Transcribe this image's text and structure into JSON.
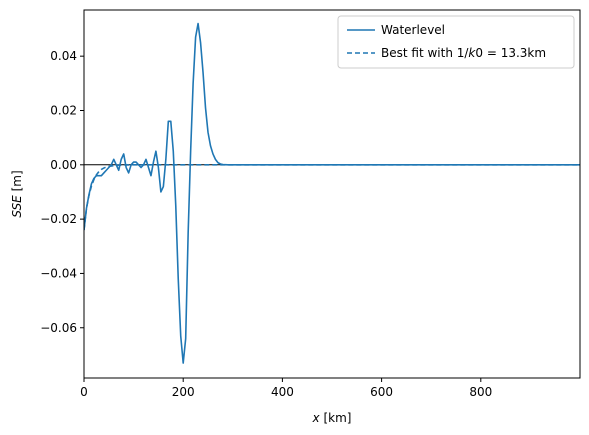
{
  "chart_data": {
    "type": "line",
    "xlabel": "x [km]",
    "ylabel": "SSE [m]",
    "xlim": [
      0,
      1000
    ],
    "ylim": [
      -0.0785,
      0.057
    ],
    "xticks": [
      0,
      200,
      400,
      600,
      800
    ],
    "xtick_labels": [
      "0",
      "200",
      "400",
      "600",
      "800"
    ],
    "yticks": [
      0.04,
      0.02,
      0.0,
      -0.02,
      -0.04,
      -0.06
    ],
    "ytick_labels": [
      "0.04",
      "0.02",
      "0.00",
      "−0.02",
      "−0.04",
      "−0.06"
    ],
    "grid": false,
    "legend_position": "top-right",
    "zero_line": {
      "y": 0,
      "color": "#000000"
    },
    "series": [
      {
        "name": "Waterlevel",
        "style": "solid",
        "color": "#1f77b4",
        "x": [
          0,
          5,
          10,
          15,
          20,
          25,
          30,
          35,
          40,
          45,
          50,
          55,
          60,
          65,
          70,
          75,
          80,
          85,
          90,
          95,
          100,
          105,
          110,
          115,
          120,
          125,
          130,
          135,
          140,
          145,
          150,
          155,
          160,
          165,
          170,
          175,
          180,
          185,
          190,
          195,
          200,
          205,
          210,
          215,
          220,
          225,
          230,
          235,
          240,
          245,
          250,
          255,
          260,
          265,
          270,
          275,
          280,
          290,
          300,
          350,
          400,
          500,
          600,
          700,
          800,
          900,
          1000
        ],
        "y": [
          -0.024,
          -0.016,
          -0.011,
          -0.007,
          -0.005,
          -0.004,
          -0.004,
          -0.004,
          -0.003,
          -0.002,
          -0.001,
          0.0,
          0.002,
          0.0,
          -0.002,
          0.002,
          0.004,
          -0.001,
          -0.003,
          0.0,
          0.001,
          0.001,
          0.0,
          -0.001,
          0.0,
          0.002,
          -0.001,
          -0.004,
          0.001,
          0.005,
          -0.001,
          -0.01,
          -0.008,
          0.002,
          0.016,
          0.016,
          0.005,
          -0.015,
          -0.042,
          -0.063,
          -0.073,
          -0.064,
          -0.025,
          0.005,
          0.03,
          0.047,
          0.052,
          0.045,
          0.034,
          0.021,
          0.012,
          0.007,
          0.004,
          0.002,
          0.0008,
          0.0003,
          0.0001,
          0.0,
          0.0,
          0.0,
          0.0,
          0.0,
          0.0,
          0.0,
          0.0,
          0.0,
          0.0
        ]
      },
      {
        "name": "Best fit with 1/k0 = 13.3km",
        "style": "dashed",
        "color": "#1f77b4",
        "x": [
          0,
          5,
          10,
          15,
          20,
          25,
          30,
          35,
          40,
          45,
          50,
          60,
          70,
          80,
          100,
          120,
          150,
          200,
          300,
          400,
          600,
          800,
          1000
        ],
        "y": [
          -0.024,
          -0.016,
          -0.0113,
          -0.0078,
          -0.0054,
          -0.0037,
          -0.0025,
          -0.0017,
          -0.0012,
          -0.0008,
          -0.0006,
          -0.0003,
          -0.00013,
          -6e-05,
          -1e-05,
          0.0,
          0.0,
          0.0,
          0.0,
          0.0,
          0.0,
          0.0,
          0.0
        ]
      }
    ]
  }
}
